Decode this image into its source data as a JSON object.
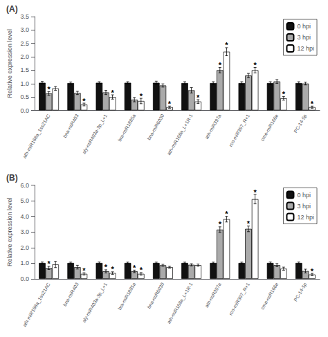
{
  "chart_data": [
    {
      "type": "bar",
      "title": "(A)",
      "ylabel": "Relative expression level",
      "categories": [
        "ath-miR168a_1ss21AC",
        "bna-miR403",
        "aly-miR403a-3p_L+1",
        "bra-miR1885a",
        "bna-miR6030",
        "ath-miR168a_L+1R-1",
        "ath-miR397a",
        "rco-miR397_R+1",
        "cme-miR166e",
        "PC-14-5p"
      ],
      "series": [
        {
          "name": "0 hpi",
          "color": "#111111",
          "values": [
            1.03,
            1.02,
            1.03,
            1.03,
            1.03,
            1.02,
            1.02,
            1.02,
            1.02,
            1.02
          ],
          "errors": [
            0.05,
            0.04,
            0.04,
            0.04,
            0.06,
            0.05,
            0.05,
            0.05,
            0.05,
            0.05
          ]
        },
        {
          "name": "3 hpi",
          "color": "#aaaaaa",
          "values": [
            0.63,
            0.65,
            0.67,
            0.4,
            0.93,
            0.75,
            1.5,
            1.3,
            1.08,
            1.0
          ],
          "errors": [
            0.07,
            0.06,
            0.08,
            0.08,
            0.06,
            0.1,
            0.1,
            0.08,
            0.07,
            0.05
          ],
          "annotations": [
            "*",
            null,
            null,
            null,
            null,
            null,
            "*",
            null,
            null,
            null
          ]
        },
        {
          "name": "12 hpi",
          "color": "#ffffff",
          "values": [
            0.82,
            0.22,
            0.5,
            0.35,
            0.12,
            0.33,
            2.19,
            1.5,
            0.45,
            0.12
          ],
          "errors": [
            0.07,
            0.05,
            0.08,
            0.1,
            0.04,
            0.07,
            0.15,
            0.1,
            0.07,
            0.04
          ],
          "annotations": [
            null,
            "*",
            "*",
            "*",
            "*",
            "*",
            "*",
            "*",
            "*",
            "*"
          ]
        }
      ],
      "ylim": [
        0.0,
        3.5
      ],
      "yticks": [
        {
          "value": 0.0,
          "label": "0.0"
        },
        0.5,
        {
          "value": 1.0,
          "label": "1.0"
        },
        1.5,
        {
          "value": 2.0,
          "label": "2.0"
        },
        2.5,
        {
          "value": 3.0,
          "label": "3.0"
        },
        3.5
      ],
      "legend": "upper right",
      "grid": false
    },
    {
      "type": "bar",
      "title": "(B)",
      "ylabel": "Relative expression level",
      "categories": [
        "ath-miR168a_1ss21AC",
        "bna-miR403",
        "aly-miR403a-3p_L+1",
        "bra-miR1885a",
        "bna-miR6030",
        "ath-miR168a_L+1R-1",
        "ath-miR397a",
        "rco-miR397_R+1",
        "cme-miR166e",
        "PC-14-5p"
      ],
      "series": [
        {
          "name": "0 hpi",
          "color": "#111111",
          "values": [
            1.02,
            1.02,
            1.02,
            1.02,
            1.02,
            1.02,
            1.02,
            1.02,
            1.02,
            1.02
          ],
          "errors": [
            0.06,
            0.05,
            0.06,
            0.05,
            0.05,
            0.05,
            0.05,
            0.05,
            0.06,
            0.06
          ]
        },
        {
          "name": "3 hpi",
          "color": "#aaaaaa",
          "values": [
            0.7,
            0.75,
            0.48,
            0.48,
            0.87,
            0.9,
            3.15,
            3.2,
            0.88,
            0.5
          ],
          "errors": [
            0.1,
            0.12,
            0.1,
            0.08,
            0.06,
            0.07,
            0.18,
            0.18,
            0.1,
            0.12
          ],
          "annotations": [
            "*",
            null,
            "*",
            "*",
            null,
            null,
            "*",
            "*",
            null,
            null
          ]
        },
        {
          "name": "12 hpi",
          "color": "#ffffff",
          "values": [
            0.92,
            0.32,
            0.37,
            0.32,
            0.75,
            0.88,
            3.82,
            5.1,
            0.65,
            0.28
          ],
          "errors": [
            0.2,
            0.07,
            0.08,
            0.08,
            0.06,
            0.07,
            0.18,
            0.3,
            0.1,
            0.07
          ],
          "annotations": [
            null,
            "*",
            "*",
            "*",
            null,
            null,
            "*",
            "*",
            null,
            "*"
          ]
        }
      ],
      "ylim": [
        0.0,
        6.0
      ],
      "yticks": [
        {
          "value": 0.0,
          "label": "0.0"
        },
        {
          "value": 1.0,
          "label": "1.0"
        },
        {
          "value": 2.0,
          "label": "2.0"
        },
        {
          "value": 3.0,
          "label": "3.0"
        },
        {
          "value": 4.0,
          "label": "4.0"
        },
        {
          "value": 5.0,
          "label": "5.0"
        },
        {
          "value": 6.0,
          "label": "6.0"
        }
      ],
      "legend": "upper right",
      "grid": false
    }
  ]
}
